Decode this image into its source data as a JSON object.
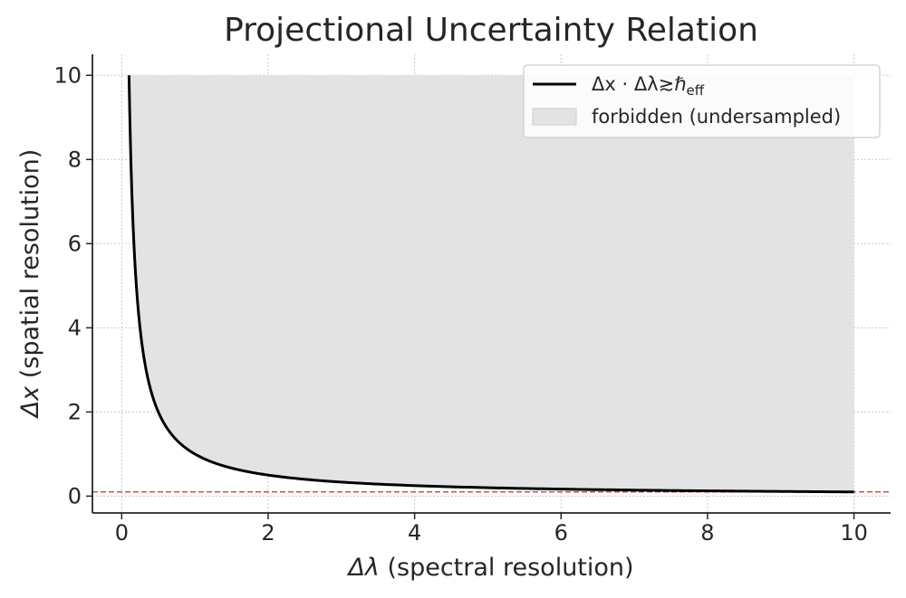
{
  "chart_data": {
    "type": "line",
    "title": "Projectional Uncertainty Relation",
    "xlabel_symbol": "Δλ",
    "xlabel_text": " (spectral resolution)",
    "ylabel_symbol": "Δx",
    "ylabel_text": " (spatial resolution)",
    "xlim": [
      -0.4,
      10.5
    ],
    "ylim": [
      -0.4,
      10.5
    ],
    "xticks": [
      0,
      2,
      4,
      6,
      8,
      10
    ],
    "yticks": [
      0,
      2,
      4,
      6,
      8,
      10
    ],
    "grid": true,
    "legend_position": "top-right",
    "series": [
      {
        "name": "Δx · Δλ≳ℏ_eff",
        "kind": "line",
        "color": "#000000",
        "x": [
          0.1,
          0.12,
          0.15,
          0.2,
          0.25,
          0.3,
          0.4,
          0.5,
          0.6,
          0.7,
          0.8,
          1.0,
          1.2,
          1.5,
          2.0,
          2.5,
          3.0,
          4.0,
          5.0,
          6.0,
          7.0,
          8.0,
          9.0,
          10.0
        ],
        "y": [
          10.0,
          8.33,
          6.67,
          5.0,
          4.0,
          3.33,
          2.5,
          2.0,
          1.67,
          1.43,
          1.25,
          1.0,
          0.83,
          0.67,
          0.5,
          0.4,
          0.33,
          0.25,
          0.2,
          0.17,
          0.14,
          0.125,
          0.11,
          0.1
        ]
      },
      {
        "name": "forbidden (undersampled)",
        "kind": "fill",
        "color": "#e3e3e3",
        "x_range": [
          0.1,
          10.0
        ],
        "y_top": 10.0,
        "lower_bound": "Δx · Δλ≳ℏ_eff"
      }
    ],
    "reference_line": {
      "y": 0.1,
      "color": "#d62728",
      "style": "dashed"
    },
    "legend": {
      "line_label_main": "Δx · Δλ≳ℏ",
      "line_label_sub": "eff",
      "fill_label": "forbidden (undersampled)"
    }
  }
}
